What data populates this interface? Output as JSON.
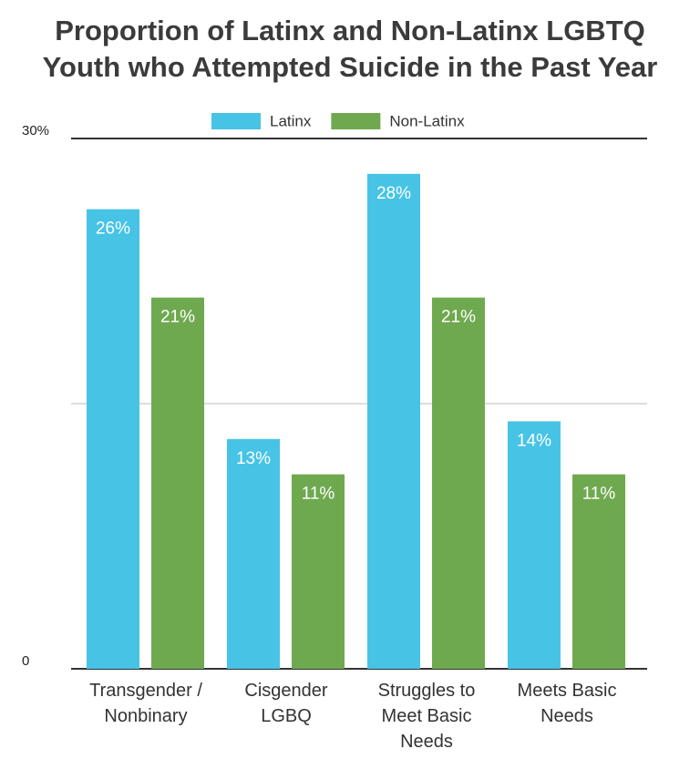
{
  "chart_data": {
    "type": "bar",
    "title": "Proportion of Latinx and Non-Latinx LGBTQ Youth who Attempted Suicide in the Past Year",
    "categories": [
      "Transgender / Nonbinary",
      "Cisgender LGBQ",
      "Struggles to Meet Basic Needs",
      "Meets Basic Needs"
    ],
    "series": [
      {
        "name": "Latinx",
        "color": "#47c3e6",
        "values": [
          26,
          13,
          28,
          14
        ],
        "value_labels": [
          "26%",
          "13%",
          "28%",
          "14%"
        ]
      },
      {
        "name": "Non-Latinx",
        "color": "#6fa94f",
        "values": [
          21,
          11,
          21,
          11
        ],
        "value_labels": [
          "21%",
          "11%",
          "21%",
          "11%"
        ]
      }
    ],
    "ylim": [
      0,
      30
    ],
    "yticks": [
      0,
      {
        "value": 30,
        "label": "30%"
      }
    ],
    "ygrid": [
      15
    ],
    "legend": "top"
  }
}
